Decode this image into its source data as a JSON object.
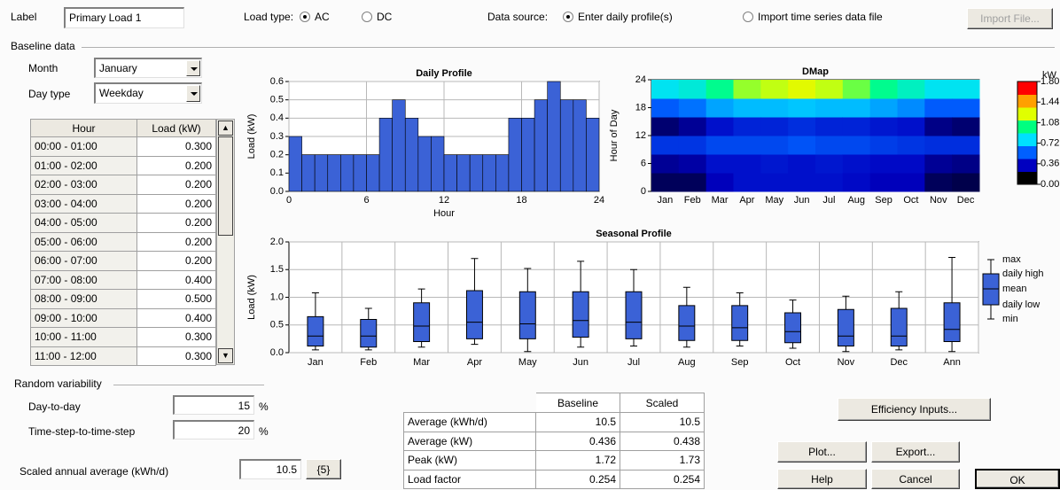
{
  "header": {
    "label_caption": "Label",
    "label_value": "Primary Load 1",
    "load_type_caption": "Load type:",
    "load_type_options": [
      "AC",
      "DC"
    ],
    "load_type_selected": "AC",
    "data_source_caption": "Data source:",
    "data_source_options": [
      "Enter daily profile(s)",
      "Import time series data file"
    ],
    "data_source_selected": "Enter daily profile(s)",
    "import_button": "Import File..."
  },
  "baseline": {
    "title": "Baseline data",
    "month_caption": "Month",
    "month": "January",
    "day_type_caption": "Day type",
    "day_type": "Weekday",
    "table": {
      "columns": [
        "Hour",
        "Load (kW)"
      ],
      "rows": [
        [
          "00:00 - 01:00",
          "0.300"
        ],
        [
          "01:00 - 02:00",
          "0.200"
        ],
        [
          "02:00 - 03:00",
          "0.200"
        ],
        [
          "03:00 - 04:00",
          "0.200"
        ],
        [
          "04:00 - 05:00",
          "0.200"
        ],
        [
          "05:00 - 06:00",
          "0.200"
        ],
        [
          "06:00 - 07:00",
          "0.200"
        ],
        [
          "07:00 - 08:00",
          "0.400"
        ],
        [
          "08:00 - 09:00",
          "0.500"
        ],
        [
          "09:00 - 10:00",
          "0.400"
        ],
        [
          "10:00 - 11:00",
          "0.300"
        ],
        [
          "11:00 - 12:00",
          "0.300"
        ]
      ]
    }
  },
  "chart_data": [
    {
      "type": "bar",
      "title": "Daily Profile",
      "xlabel": "Hour",
      "ylabel": "Load (kW)",
      "color": "#3b62d6",
      "grid": true,
      "x": [
        0,
        1,
        2,
        3,
        4,
        5,
        6,
        7,
        8,
        9,
        10,
        11,
        12,
        13,
        14,
        15,
        16,
        17,
        18,
        19,
        20,
        21,
        22,
        23
      ],
      "values": [
        0.3,
        0.2,
        0.2,
        0.2,
        0.2,
        0.2,
        0.2,
        0.4,
        0.5,
        0.4,
        0.3,
        0.3,
        0.2,
        0.2,
        0.2,
        0.2,
        0.2,
        0.4,
        0.4,
        0.5,
        0.6,
        0.5,
        0.5,
        0.4
      ],
      "xlim": [
        0,
        24
      ],
      "xticks": [
        0,
        6,
        12,
        18,
        24
      ],
      "ylim": [
        0,
        0.6
      ],
      "yticks": [
        {
          "value": 0,
          "label": "0.0"
        },
        0.1,
        0.2,
        0.3,
        0.4,
        0.5,
        0.6
      ]
    },
    {
      "type": "heatmap",
      "title": "DMap",
      "ylabel": "Hour of Day",
      "categories": [
        "Jan",
        "Feb",
        "Mar",
        "Apr",
        "May",
        "Jun",
        "Jul",
        "Aug",
        "Sep",
        "Oct",
        "Nov",
        "Dec"
      ],
      "bands": [
        0,
        4,
        8,
        12,
        16,
        20,
        24
      ],
      "values": [
        [
          0.12,
          0.2,
          0.4,
          0.15,
          0.5,
          0.8
        ],
        [
          0.12,
          0.22,
          0.4,
          0.2,
          0.55,
          0.85
        ],
        [
          0.25,
          0.3,
          0.45,
          0.3,
          0.65,
          1.0
        ],
        [
          0.3,
          0.3,
          0.45,
          0.35,
          0.7,
          1.2
        ],
        [
          0.3,
          0.32,
          0.45,
          0.35,
          0.7,
          1.25
        ],
        [
          0.3,
          0.3,
          0.48,
          0.38,
          0.72,
          1.3
        ],
        [
          0.3,
          0.32,
          0.45,
          0.35,
          0.7,
          1.25
        ],
        [
          0.28,
          0.3,
          0.45,
          0.35,
          0.7,
          1.15
        ],
        [
          0.25,
          0.28,
          0.42,
          0.32,
          0.65,
          1.0
        ],
        [
          0.25,
          0.28,
          0.4,
          0.3,
          0.6,
          0.9
        ],
        [
          0.12,
          0.2,
          0.38,
          0.18,
          0.5,
          0.8
        ],
        [
          0.1,
          0.18,
          0.38,
          0.15,
          0.5,
          0.8
        ]
      ],
      "ylim": [
        0,
        24
      ],
      "yticks": [
        0,
        6,
        12,
        18,
        24
      ],
      "zlim": [
        0,
        1.8
      ],
      "colorscale": [
        "#000000",
        "#0000c0",
        "#0060ff",
        "#00e0ff",
        "#00ff80",
        "#e0ff00",
        "#ffa000",
        "#ff0000"
      ],
      "colorbar_title": "kW",
      "colorbar_ticks": [
        {
          "value": 1.8,
          "label": "1.80"
        },
        {
          "value": 1.44,
          "label": "1.44"
        },
        {
          "value": 1.08,
          "label": "1.08"
        },
        {
          "value": 0.72,
          "label": "0.72"
        },
        {
          "value": 0.36,
          "label": "0.36"
        },
        {
          "value": 0,
          "label": "0.00"
        }
      ]
    },
    {
      "type": "box",
      "title": "Seasonal Profile",
      "ylabel": "Load (kW)",
      "color": "#3b62d6",
      "grid": true,
      "categories": [
        "Jan",
        "Feb",
        "Mar",
        "Apr",
        "May",
        "Jun",
        "Jul",
        "Aug",
        "Sep",
        "Oct",
        "Nov",
        "Dec",
        "Ann"
      ],
      "series": [
        {
          "name": "max",
          "values": [
            1.08,
            0.8,
            1.15,
            1.7,
            1.52,
            1.65,
            1.5,
            1.18,
            1.08,
            0.95,
            1.02,
            1.1,
            1.72
          ]
        },
        {
          "name": "daily high",
          "values": [
            0.65,
            0.6,
            0.9,
            1.12,
            1.1,
            1.1,
            1.1,
            0.85,
            0.85,
            0.72,
            0.78,
            0.8,
            0.9
          ]
        },
        {
          "name": "mean",
          "values": [
            0.3,
            0.3,
            0.48,
            0.55,
            0.52,
            0.58,
            0.55,
            0.48,
            0.45,
            0.38,
            0.3,
            0.3,
            0.42
          ]
        },
        {
          "name": "daily low",
          "values": [
            0.12,
            0.1,
            0.2,
            0.25,
            0.25,
            0.28,
            0.25,
            0.22,
            0.22,
            0.18,
            0.12,
            0.12,
            0.2
          ]
        },
        {
          "name": "min",
          "values": [
            0.05,
            0.05,
            0.1,
            0.15,
            0.02,
            0.1,
            0.12,
            0.1,
            0.12,
            0.08,
            0.02,
            0.05,
            0.02
          ]
        }
      ],
      "ylim": [
        0,
        2
      ],
      "yticks": [
        {
          "value": 0,
          "label": "0.0"
        },
        0.5,
        {
          "value": 1,
          "label": "1.0"
        },
        1.5,
        {
          "value": 2,
          "label": "2.0"
        }
      ]
    }
  ],
  "random_variability": {
    "title": "Random variability",
    "day_to_day_caption": "Day-to-day",
    "day_to_day": 15,
    "time_step_caption": "Time-step-to-time-step",
    "time_step": 20,
    "unit": "%"
  },
  "scaled": {
    "caption": "Scaled annual average (kWh/d)",
    "value": "10.5",
    "button": "{5}"
  },
  "stats_table": {
    "columns": [
      "Baseline",
      "Scaled"
    ],
    "rows": [
      {
        "label": "Average (kWh/d)",
        "values": [
          "10.5",
          "10.5"
        ]
      },
      {
        "label": "Average (kW)",
        "values": [
          "0.436",
          "0.438"
        ]
      },
      {
        "label": "Peak (kW)",
        "values": [
          "1.72",
          "1.73"
        ]
      },
      {
        "label": "Load factor",
        "values": [
          "0.254",
          "0.254"
        ]
      }
    ]
  },
  "buttons": {
    "efficiency": "Efficiency Inputs...",
    "plot": "Plot...",
    "export": "Export...",
    "help": "Help",
    "cancel": "Cancel",
    "ok": "OK"
  }
}
